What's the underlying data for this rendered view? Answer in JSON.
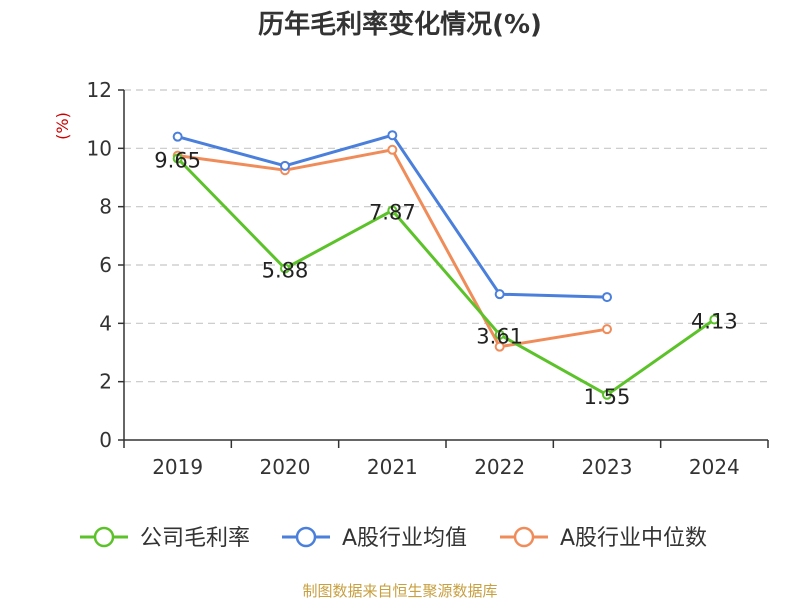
{
  "colors": {
    "company": "#5cc229",
    "industry_avg": "#4a7fdc",
    "industry_median": "#f08c5a",
    "grid": "#c8c8c8",
    "axis": "#333333",
    "ylabel": "#cc0000",
    "source": "#c8a040"
  },
  "chart_data": {
    "type": "line",
    "title": "历年毛利率变化情况(%)",
    "ylabel": "(%)",
    "xlabel": "",
    "categories": [
      "2019",
      "2020",
      "2021",
      "2022",
      "2023",
      "2024"
    ],
    "ylim": [
      0,
      12
    ],
    "yticks": [
      0,
      2,
      4,
      6,
      8,
      10,
      12
    ],
    "grid": true,
    "legend_position": "bottom",
    "series": [
      {
        "key": "company",
        "name": "公司毛利率",
        "values": [
          9.65,
          5.88,
          7.87,
          3.61,
          1.55,
          4.13
        ],
        "labels": [
          "9.65",
          "5.88",
          "7.87",
          "3.61",
          "1.55",
          "4.13"
        ]
      },
      {
        "key": "industry_avg",
        "name": "A股行业均值",
        "values": [
          10.4,
          9.4,
          10.45,
          5.0,
          4.9,
          null
        ]
      },
      {
        "key": "industry_median",
        "name": "A股行业中位数",
        "values": [
          9.75,
          9.25,
          9.95,
          3.2,
          3.8,
          null
        ]
      }
    ]
  },
  "source_text": "制图数据来自恒生聚源数据库"
}
